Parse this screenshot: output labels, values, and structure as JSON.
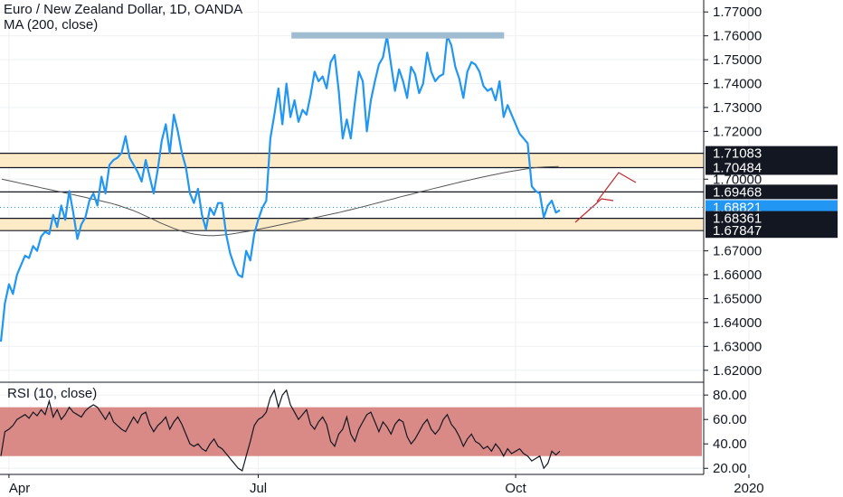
{
  "title": "Euro / New Zealand Dollar, 1D, OANDA",
  "ma_label": "MA (200, close)",
  "rsi_label": "RSI (10, close)",
  "colors": {
    "price_line": "#2196f3",
    "ma_line": "#555555",
    "zone_fill": "#fdebc8",
    "resistance_bar": "#9fbcd0",
    "rsi_band": "#d98a86",
    "rsi_line": "#131722",
    "arrow": "#c0282d",
    "current_price_bg": "#2196f3",
    "label_bg": "#131722",
    "label_text": "#ffffff",
    "axis_text": "#131722",
    "grid": "#eef0f3"
  },
  "chart_data": [
    {
      "type": "line",
      "title": "Euro / New Zealand Dollar, 1D, OANDA",
      "x_tick_labels": [
        "Apr",
        "Jul",
        "Oct",
        "2020"
      ],
      "x_tick_index": [
        2,
        64,
        128,
        186
      ],
      "ylim": [
        1.615,
        1.775
      ],
      "y_tick_labels": [
        "1.77000",
        "1.76000",
        "1.75000",
        "1.74000",
        "1.73000",
        "1.72000",
        "1.70000",
        "1.67000",
        "1.66000",
        "1.65000",
        "1.64000",
        "1.63000",
        "1.62000"
      ],
      "y_tick_values": [
        1.77,
        1.76,
        1.75,
        1.74,
        1.73,
        1.72,
        1.7,
        1.67,
        1.66,
        1.65,
        1.64,
        1.63,
        1.62
      ],
      "grid": true,
      "series": [
        {
          "name": "EURNZD",
          "values": [
            1.632,
            1.648,
            1.656,
            1.652,
            1.66,
            1.664,
            1.668,
            1.667,
            1.672,
            1.67,
            1.676,
            1.678,
            1.677,
            1.685,
            1.68,
            1.689,
            1.683,
            1.695,
            1.686,
            1.675,
            1.681,
            1.684,
            1.691,
            1.694,
            1.689,
            1.701,
            1.694,
            1.706,
            1.708,
            1.709,
            1.711,
            1.718,
            1.709,
            1.706,
            1.703,
            1.699,
            1.708,
            1.701,
            1.694,
            1.704,
            1.716,
            1.723,
            1.711,
            1.727,
            1.72,
            1.711,
            1.705,
            1.694,
            1.69,
            1.696,
            1.685,
            1.679,
            1.688,
            1.685,
            1.69,
            1.69,
            1.677,
            1.669,
            1.664,
            1.66,
            1.659,
            1.67,
            1.666,
            1.677,
            1.683,
            1.688,
            1.691,
            1.717,
            1.727,
            1.738,
            1.723,
            1.74,
            1.726,
            1.733,
            1.724,
            1.729,
            1.727,
            1.735,
            1.745,
            1.741,
            1.743,
            1.738,
            1.749,
            1.752,
            1.737,
            1.717,
            1.725,
            1.717,
            1.732,
            1.745,
            1.741,
            1.72,
            1.733,
            1.741,
            1.748,
            1.751,
            1.76,
            1.748,
            1.737,
            1.746,
            1.741,
            1.734,
            1.747,
            1.744,
            1.736,
            1.74,
            1.753,
            1.745,
            1.741,
            1.743,
            1.744,
            1.76,
            1.756,
            1.747,
            1.742,
            1.734,
            1.745,
            1.749,
            1.748,
            1.745,
            1.739,
            1.737,
            1.738,
            1.733,
            1.741,
            1.726,
            1.731,
            1.727,
            1.723,
            1.719,
            1.717,
            1.715,
            1.697,
            1.695,
            1.694,
            1.684,
            1.689,
            1.691,
            1.686,
            1.687
          ]
        },
        {
          "name": "MA (200, close)",
          "values": [
            1.7,
            1.6994,
            1.6988,
            1.6981,
            1.6975,
            1.6969,
            1.6962,
            1.6956,
            1.695,
            1.6944,
            1.6938,
            1.6931,
            1.6925,
            1.6918,
            1.6912,
            1.6905,
            1.6898,
            1.689,
            1.688,
            1.687,
            1.6858,
            1.6845,
            1.6832,
            1.6818,
            1.6806,
            1.6794,
            1.6784,
            1.6776,
            1.677,
            1.6766,
            1.6764,
            1.6764,
            1.6766,
            1.6769,
            1.6773,
            1.6778,
            1.6783,
            1.6788,
            1.6794,
            1.68,
            1.6806,
            1.6812,
            1.6818,
            1.6824,
            1.683,
            1.6836,
            1.6842,
            1.6848,
            1.6854,
            1.686,
            1.6867,
            1.6874,
            1.6881,
            1.6888,
            1.6896,
            1.6903,
            1.6911,
            1.6918,
            1.6926,
            1.6933,
            1.694,
            1.6948,
            1.6955,
            1.6962,
            1.6969,
            1.6976,
            1.6983,
            1.699,
            1.6996,
            1.7003,
            1.7009,
            1.7015,
            1.7021,
            1.7027,
            1.7032,
            1.7037,
            1.7042,
            1.7046,
            1.7049,
            1.7051,
            1.7052,
            1.7053
          ]
        }
      ],
      "price_labels": [
        {
          "label": "1.71083",
          "value": 1.71083,
          "style": "dark"
        },
        {
          "label": "1.70484",
          "value": 1.70484,
          "style": "dark"
        },
        {
          "label": "1.69468",
          "value": 1.69468,
          "style": "dark"
        },
        {
          "label": "1.68821",
          "value": 1.68821,
          "style": "current"
        },
        {
          "label": "1.68361",
          "value": 1.68361,
          "style": "dark"
        },
        {
          "label": "1.67847",
          "value": 1.67847,
          "style": "dark"
        }
      ],
      "horizontal_lines": [
        1.71083,
        1.70484,
        1.69468,
        1.68361,
        1.67847
      ],
      "zones": [
        [
          1.70484,
          1.71083
        ],
        [
          1.67847,
          1.68361
        ]
      ],
      "resistance_bar": {
        "value": 1.76,
        "from_index": 70,
        "to_index": 124
      }
    },
    {
      "type": "line",
      "title": "RSI (10, close)",
      "ylim": [
        15,
        89
      ],
      "y_tick_labels": [
        "80.00",
        "60.00",
        "40.00",
        "20.00"
      ],
      "y_tick_values": [
        80,
        60,
        40,
        20
      ],
      "band": [
        30,
        70
      ],
      "series": [
        {
          "name": "RSI",
          "values": [
            30,
            50,
            52,
            55,
            60,
            62,
            64,
            61,
            66,
            63,
            68,
            64,
            75,
            62,
            68,
            60,
            64,
            70,
            66,
            64,
            62,
            67,
            70,
            72,
            70,
            65,
            60,
            66,
            58,
            55,
            52,
            50,
            56,
            62,
            57,
            64,
            66,
            56,
            50,
            55,
            58,
            62,
            52,
            58,
            62,
            56,
            48,
            40,
            38,
            40,
            36,
            34,
            40,
            44,
            38,
            36,
            32,
            28,
            24,
            20,
            18,
            30,
            42,
            55,
            60,
            62,
            66,
            78,
            84,
            70,
            80,
            84,
            72,
            66,
            60,
            64,
            68,
            56,
            52,
            58,
            62,
            56,
            42,
            38,
            48,
            52,
            62,
            48,
            42,
            52,
            58,
            64,
            66,
            58,
            50,
            58,
            54,
            48,
            56,
            60,
            58,
            46,
            40,
            44,
            50,
            56,
            60,
            52,
            48,
            52,
            60,
            64,
            56,
            52,
            46,
            38,
            44,
            48,
            42,
            40,
            36,
            38,
            34,
            40,
            36,
            30,
            36,
            32,
            34,
            36,
            32,
            30,
            26,
            28,
            30,
            20,
            24,
            34,
            31,
            34
          ]
        }
      ]
    }
  ]
}
